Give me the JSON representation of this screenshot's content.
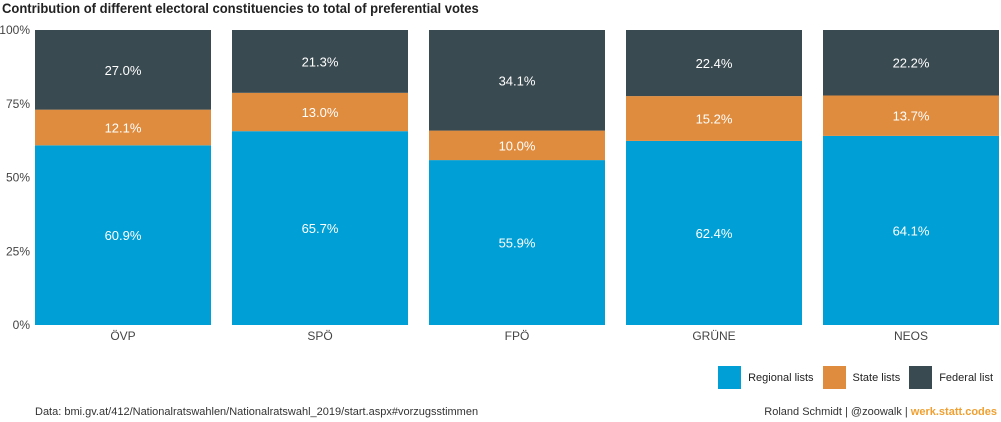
{
  "title": "Contribution of different electoral constituencies to total of preferential votes",
  "chart_data": {
    "type": "bar",
    "stacked": true,
    "categories": [
      "ÖVP",
      "SPÖ",
      "FPÖ",
      "GRÜNE",
      "NEOS"
    ],
    "series": [
      {
        "name": "Regional lists",
        "color": "#00a0d6",
        "values": [
          60.9,
          65.7,
          55.9,
          62.4,
          64.1
        ],
        "labels": [
          "60.9%",
          "65.7%",
          "55.9%",
          "62.4%",
          "64.1%"
        ]
      },
      {
        "name": "State lists",
        "color": "#e08c3f",
        "values": [
          12.1,
          13.0,
          10.0,
          15.2,
          13.7
        ],
        "labels": [
          "12.1%",
          "13.0%",
          "10.0%",
          "15.2%",
          "13.7%"
        ]
      },
      {
        "name": "Federal list",
        "color": "#3a4a51",
        "values": [
          27.0,
          21.3,
          34.1,
          22.4,
          22.2
        ],
        "labels": [
          "27.0%",
          "21.3%",
          "34.1%",
          "22.4%",
          "22.2%"
        ]
      }
    ],
    "ylim": [
      0,
      100
    ],
    "yticks": [
      0,
      25,
      50,
      75,
      100
    ],
    "ytick_labels": [
      "0%",
      "25%",
      "50%",
      "75%",
      "100%"
    ],
    "legend_position": "bottom-right",
    "grid": false
  },
  "legend": {
    "regional": "Regional lists",
    "state": "State lists",
    "federal": "Federal list"
  },
  "colors": {
    "regional": "#00a0d6",
    "state": "#e08c3f",
    "federal": "#3a4a51"
  },
  "footer": {
    "source": "Data: bmi.gv.at/412/Nationalratswahlen/Nationalratswahl_2019/start.aspx#vorzugsstimmen",
    "author": "Roland Schmidt | @zoowalk | ",
    "brand": "werk.statt.codes"
  }
}
